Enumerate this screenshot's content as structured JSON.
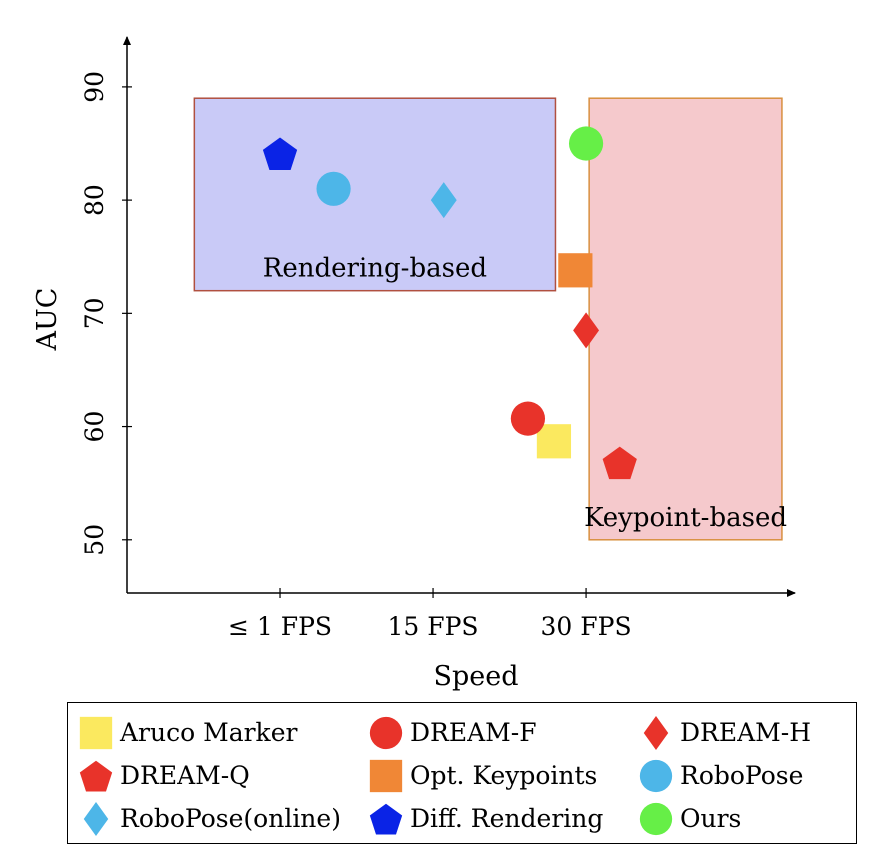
{
  "chart_data": {
    "type": "scatter",
    "xlabel": "Speed",
    "ylabel": "AUC",
    "xticks": [
      {
        "label": "≤ 1 FPS",
        "value": 1
      },
      {
        "label": "15 FPS",
        "value": 2
      },
      {
        "label": "30 FPS",
        "value": 3
      }
    ],
    "yticks": [
      50,
      60,
      70,
      80,
      90
    ],
    "xlim": [
      0.0,
      4.3
    ],
    "ylim": [
      45.3,
      93.7
    ],
    "grid": false,
    "regions": [
      {
        "label": "Rendering-based",
        "x": [
          0.44,
          2.8
        ],
        "y": [
          72.0,
          89.0
        ],
        "fill": "#c9caf7",
        "stroke": "#b05040"
      },
      {
        "label": "Keypoint-based",
        "x": [
          3.02,
          4.28
        ],
        "y": [
          50.0,
          89.0
        ],
        "fill": "#f5c9cc",
        "stroke": "#d89040"
      }
    ],
    "series": [
      {
        "name": "Aruco Marker",
        "marker": "square",
        "color": "#fbe95f",
        "x": 2.79,
        "y": 58.7
      },
      {
        "name": "DREAM-F",
        "marker": "circle",
        "color": "#e8332a",
        "x": 2.62,
        "y": 60.7
      },
      {
        "name": "DREAM-H",
        "marker": "diamond",
        "color": "#e8332a",
        "x": 3.0,
        "y": 68.5
      },
      {
        "name": "DREAM-Q",
        "marker": "pentagon",
        "color": "#e8332a",
        "x": 3.22,
        "y": 56.8
      },
      {
        "name": "Opt. Keypoints",
        "marker": "square",
        "color": "#f08736",
        "x": 2.93,
        "y": 73.8
      },
      {
        "name": "RoboPose",
        "marker": "circle",
        "color": "#4db6e8",
        "x": 1.35,
        "y": 81.0
      },
      {
        "name": "RoboPose(online)",
        "marker": "diamond",
        "color": "#4db6e8",
        "x": 2.07,
        "y": 80.0
      },
      {
        "name": "Diff. Rendering",
        "marker": "pentagon",
        "color": "#0a23e6",
        "x": 1.0,
        "y": 84.1
      },
      {
        "name": "Ours",
        "marker": "circle",
        "color": "#66ef47",
        "x": 3.0,
        "y": 85.0
      }
    ],
    "legend_position": "bottom"
  }
}
